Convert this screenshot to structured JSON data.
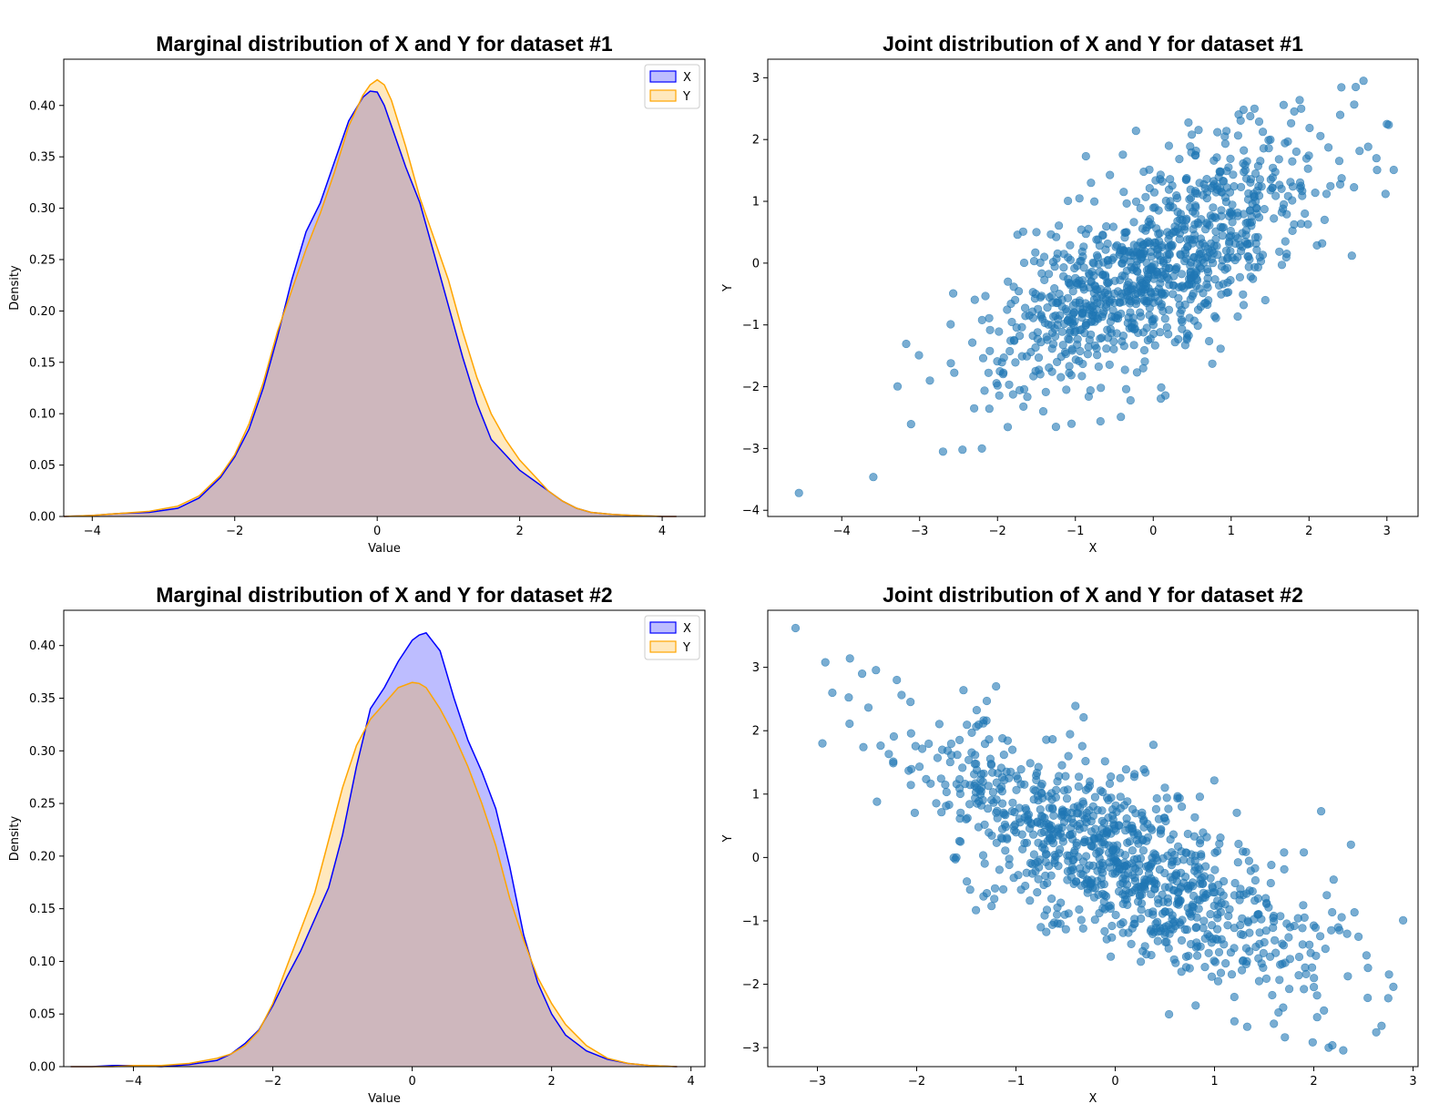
{
  "chart_data": [
    {
      "type": "area",
      "title": "Marginal distribution of X and Y for dataset #1",
      "xlabel": "Value",
      "ylabel": "Density",
      "xlim": [
        -4.4,
        4.6
      ],
      "ylim": [
        0,
        0.445
      ],
      "xticks": [
        "−4",
        "−2",
        "0",
        "2",
        "4"
      ],
      "xtick_values": [
        -4,
        -2,
        0,
        2,
        4
      ],
      "yticks": [
        "0.00",
        "0.05",
        "0.10",
        "0.15",
        "0.20",
        "0.25",
        "0.30",
        "0.35",
        "0.40"
      ],
      "ytick_values": [
        0,
        0.05,
        0.1,
        0.15,
        0.2,
        0.25,
        0.3,
        0.35,
        0.4
      ],
      "legend_position": "top-right",
      "grid": false,
      "x": [
        -4.4,
        -4.0,
        -3.6,
        -3.2,
        -2.8,
        -2.5,
        -2.2,
        -2.0,
        -1.8,
        -1.6,
        -1.4,
        -1.2,
        -1.0,
        -0.8,
        -0.6,
        -0.4,
        -0.2,
        -0.1,
        0.0,
        0.1,
        0.2,
        0.4,
        0.6,
        0.8,
        1.0,
        1.2,
        1.4,
        1.6,
        1.8,
        2.0,
        2.2,
        2.4,
        2.6,
        2.8,
        3.0,
        3.3,
        3.6,
        4.0,
        4.2
      ],
      "series": [
        {
          "name": "X",
          "color": "#0000ff",
          "values": [
            0.0,
            0.001,
            0.003,
            0.004,
            0.008,
            0.018,
            0.038,
            0.058,
            0.085,
            0.125,
            0.175,
            0.23,
            0.277,
            0.305,
            0.345,
            0.385,
            0.408,
            0.414,
            0.413,
            0.4,
            0.38,
            0.34,
            0.305,
            0.255,
            0.205,
            0.155,
            0.11,
            0.075,
            0.06,
            0.045,
            0.035,
            0.025,
            0.015,
            0.008,
            0.004,
            0.002,
            0.001,
            0.0,
            0.0
          ]
        },
        {
          "name": "Y",
          "color": "#ffa500",
          "values": [
            0.0,
            0.001,
            0.003,
            0.005,
            0.01,
            0.02,
            0.04,
            0.06,
            0.09,
            0.13,
            0.18,
            0.22,
            0.26,
            0.295,
            0.335,
            0.38,
            0.41,
            0.42,
            0.425,
            0.42,
            0.405,
            0.36,
            0.31,
            0.27,
            0.23,
            0.18,
            0.135,
            0.1,
            0.075,
            0.055,
            0.04,
            0.025,
            0.015,
            0.008,
            0.004,
            0.002,
            0.001,
            0.0,
            0.0
          ]
        }
      ]
    },
    {
      "type": "scatter",
      "title": "Joint distribution of X and Y for dataset #1",
      "xlabel": "X",
      "ylabel": "Y",
      "xlim": [
        -4.95,
        3.4
      ],
      "ylim": [
        -4.1,
        3.3
      ],
      "xticks": [
        "−4",
        "−3",
        "−2",
        "−1",
        "0",
        "1",
        "2",
        "3"
      ],
      "xtick_values": [
        -4,
        -3,
        -2,
        -1,
        0,
        1,
        2,
        3
      ],
      "yticks": [
        "−4",
        "−3",
        "−2",
        "−1",
        "0",
        "1",
        "2",
        "3"
      ],
      "ytick_values": [
        -4,
        -3,
        -2,
        -1,
        0,
        1,
        2,
        3
      ],
      "color": "#1f77b4",
      "correlation": 0.7,
      "n_points": 1000,
      "sample_points": [
        [
          -4.55,
          -3.72
        ],
        [
          -2.7,
          -3.05
        ],
        [
          -2.45,
          -3.02
        ],
        [
          -2.2,
          -3.0
        ],
        [
          -1.05,
          -2.6
        ],
        [
          -1.25,
          -2.65
        ],
        [
          2.7,
          2.95
        ],
        [
          2.6,
          2.85
        ],
        [
          1.3,
          2.5
        ],
        [
          2.55,
          0.12
        ],
        [
          3.0,
          2.25
        ],
        [
          -2.3,
          -2.35
        ],
        [
          0.2,
          1.9
        ],
        [
          -0.8,
          1.3
        ],
        [
          2.4,
          2.4
        ],
        [
          1.9,
          2.5
        ],
        [
          -1.5,
          0.5
        ],
        [
          2.2,
          0.7
        ]
      ]
    },
    {
      "type": "area",
      "title": "Marginal distribution of X and Y for dataset #2",
      "xlabel": "Value",
      "ylabel": "Density",
      "xlim": [
        -5.0,
        4.2
      ],
      "ylim": [
        0,
        0.4335
      ],
      "xticks": [
        "−4",
        "−2",
        "0",
        "2",
        "4"
      ],
      "xtick_values": [
        -4,
        -2,
        0,
        2,
        4
      ],
      "yticks": [
        "0.00",
        "0.05",
        "0.10",
        "0.15",
        "0.20",
        "0.25",
        "0.30",
        "0.35",
        "0.40"
      ],
      "ytick_values": [
        0,
        0.05,
        0.1,
        0.15,
        0.2,
        0.25,
        0.3,
        0.35,
        0.4
      ],
      "legend_position": "top-right",
      "grid": false,
      "x": [
        -4.9,
        -4.6,
        -4.3,
        -4.0,
        -3.6,
        -3.2,
        -2.8,
        -2.6,
        -2.4,
        -2.2,
        -2.0,
        -1.8,
        -1.6,
        -1.4,
        -1.2,
        -1.0,
        -0.8,
        -0.6,
        -0.4,
        -0.2,
        0.0,
        0.1,
        0.2,
        0.4,
        0.6,
        0.8,
        1.0,
        1.2,
        1.4,
        1.6,
        1.8,
        2.0,
        2.2,
        2.5,
        2.8,
        3.1,
        3.4,
        3.8
      ],
      "series": [
        {
          "name": "X",
          "color": "#0000ff",
          "values": [
            0.0,
            0.0,
            0.001,
            0.001,
            0.0,
            0.002,
            0.006,
            0.012,
            0.022,
            0.035,
            0.058,
            0.085,
            0.11,
            0.14,
            0.17,
            0.22,
            0.285,
            0.34,
            0.36,
            0.385,
            0.405,
            0.41,
            0.412,
            0.395,
            0.35,
            0.31,
            0.28,
            0.245,
            0.19,
            0.125,
            0.08,
            0.05,
            0.03,
            0.015,
            0.007,
            0.003,
            0.001,
            0.0
          ]
        },
        {
          "name": "Y",
          "color": "#ffa500",
          "values": [
            0.0,
            0.0,
            0.0,
            0.001,
            0.001,
            0.003,
            0.008,
            0.012,
            0.02,
            0.034,
            0.06,
            0.095,
            0.13,
            0.165,
            0.215,
            0.265,
            0.305,
            0.33,
            0.345,
            0.36,
            0.365,
            0.364,
            0.36,
            0.34,
            0.315,
            0.285,
            0.25,
            0.21,
            0.16,
            0.12,
            0.085,
            0.06,
            0.04,
            0.02,
            0.008,
            0.003,
            0.001,
            0.0
          ]
        }
      ]
    },
    {
      "type": "scatter",
      "title": "Joint distribution of X and Y for dataset #2",
      "xlabel": "X",
      "ylabel": "Y",
      "xlim": [
        -3.5,
        3.05
      ],
      "ylim": [
        -3.3,
        3.9
      ],
      "xticks": [
        "−3",
        "−2",
        "−1",
        "0",
        "1",
        "2",
        "3"
      ],
      "xtick_values": [
        -3,
        -2,
        -1,
        0,
        1,
        2,
        3
      ],
      "yticks": [
        "−3",
        "−2",
        "−1",
        "0",
        "1",
        "2",
        "3"
      ],
      "ytick_values": [
        -3,
        -2,
        -1,
        0,
        1,
        2,
        3
      ],
      "color": "#1f77b4",
      "correlation": -0.75,
      "n_points": 1000,
      "sample_points": [
        [
          -3.22,
          3.62
        ],
        [
          -2.92,
          3.08
        ],
        [
          -2.85,
          2.6
        ],
        [
          -2.95,
          1.8
        ],
        [
          -2.55,
          2.9
        ],
        [
          2.75,
          -2.22
        ],
        [
          2.15,
          -3.0
        ],
        [
          -2.4,
          0.88
        ],
        [
          -2.2,
          2.8
        ],
        [
          1.2,
          -2.2
        ],
        [
          0.5,
          1.1
        ],
        [
          -0.75,
          -1.1
        ],
        [
          2.2,
          -0.35
        ],
        [
          1.9,
          0.08
        ],
        [
          -1.2,
          2.7
        ],
        [
          2.45,
          -1.25
        ],
        [
          -1.6,
          0.0
        ],
        [
          0.3,
          -1.4
        ]
      ]
    }
  ]
}
